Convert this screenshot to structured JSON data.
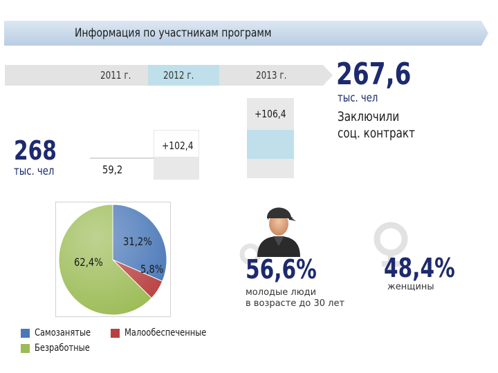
{
  "header": {
    "title": "Информация по участникам программ"
  },
  "years": [
    "2011 г.",
    "2012 г.",
    "2013 г."
  ],
  "stats": {
    "y2011_value": "268",
    "y2011_unit": "тыс. чел",
    "y2012_base": "59,2",
    "y2012_increase": "+102,4",
    "y2013_increase": "+106,4",
    "contract_value": "267,6",
    "contract_unit": "тыс. чел",
    "contract_caption_line1": "Заключили",
    "contract_caption_line2": "соц. контракт"
  },
  "young": {
    "percent": "56,6%",
    "caption_line1": "молодые люди",
    "caption_line2": "в возрасте до 30 лет"
  },
  "women": {
    "percent": "48,4%",
    "caption": "женщины"
  },
  "chart_data": {
    "type": "pie",
    "slices": [
      {
        "name": "Самозанятые",
        "value": 31.2,
        "label": "31,2%",
        "color": "#4a78b8"
      },
      {
        "name": "Малообеспеченные",
        "value": 5.8,
        "label": "5,8%",
        "color": "#b94040"
      },
      {
        "name": "Безработные",
        "value": 62.4,
        "label": "62,4%",
        "color": "#9bbb55"
      }
    ],
    "legend": [
      "Самозанятые",
      "Малообеспеченные",
      "Безработные"
    ]
  },
  "colors": {
    "banner": "#c9d8ea",
    "bar_grey": "#e6e6e6",
    "bar_blue": "#bcdbe6",
    "dark_blue": "#1d2a6e"
  }
}
